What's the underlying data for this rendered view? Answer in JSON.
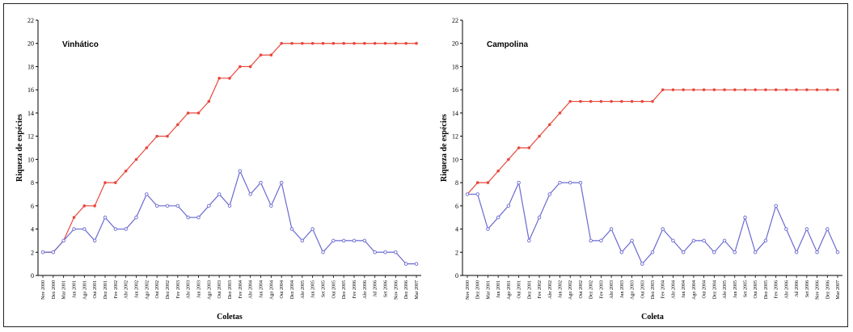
{
  "chart_data": [
    {
      "type": "line",
      "title": "Vinhático",
      "xlabel": "Coletas",
      "ylabel": "Riqueza de espécies",
      "ylim": [
        0,
        22
      ],
      "yticks": [
        0,
        2,
        4,
        6,
        8,
        10,
        12,
        14,
        16,
        18,
        20,
        22
      ],
      "grid": false,
      "x_tick_labels": [
        "Nov 2000",
        "Dez 2000",
        "Mar 2001",
        "Jun 2001",
        "Ago 2001",
        "Out 2001",
        "Dez 2001",
        "Fev 2002",
        "Abr 2002",
        "Jun 2002",
        "Ago 2002",
        "Out 2002",
        "Dez 2002",
        "Fev 2003",
        "Abr 2003",
        "Jun 2003",
        "Ago 2003",
        "Out 2003",
        "Dez 2003",
        "Fev 2004",
        "Abr 2004",
        "Jun 2004",
        "Ago 2004",
        "Out 2004",
        "Dez 2004",
        "Abr 2005",
        "Jun 2005",
        "Set 2005",
        "Out 2005",
        "Dez 2005",
        "Fev 2006",
        "Abr 2006",
        "Jul 2006",
        "Set 2006",
        "Nov 2006",
        "Dez 2006",
        "Mar 2007"
      ],
      "series": [
        {
          "name": "",
          "color": "#e8483c",
          "values": [
            2,
            2,
            3,
            5,
            6,
            6,
            8,
            8,
            9,
            10,
            11,
            12,
            12,
            13,
            14,
            14,
            15,
            17,
            17,
            18,
            18,
            19,
            19,
            20,
            20,
            20,
            20,
            20,
            20,
            20,
            20,
            20,
            20,
            20,
            20,
            20,
            20
          ]
        },
        {
          "name": "",
          "color": "#6a6ad0",
          "values": [
            2,
            2,
            3,
            4,
            4,
            3,
            5,
            4,
            4,
            5,
            7,
            6,
            6,
            6,
            5,
            5,
            6,
            7,
            6,
            9,
            7,
            8,
            6,
            8,
            4,
            3,
            4,
            2,
            3,
            3,
            3,
            3,
            2,
            2,
            2,
            1,
            1
          ]
        }
      ]
    },
    {
      "type": "line",
      "title": "Campolina",
      "xlabel": "Coleta",
      "ylabel": "Riqueza de espécies",
      "ylim": [
        0,
        22
      ],
      "yticks": [
        0,
        2,
        4,
        6,
        8,
        10,
        12,
        14,
        16,
        18,
        20,
        22
      ],
      "grid": false,
      "x_tick_labels": [
        "Nov 2000",
        "Dez 2000",
        "Mar 2001",
        "Jun 2001",
        "Ago 2001",
        "Out 2001",
        "Dez 2001",
        "Fev 2002",
        "Abr 2002",
        "Jun 2002",
        "Ago 2002",
        "Out 2002",
        "Dez 2002",
        "Fev 2003",
        "Abr 2003",
        "Jun 2003",
        "Ago 2003",
        "Out 2003",
        "Dez 2003",
        "Fev 2004",
        "Abr 2004",
        "Jun 2004",
        "Ago 2004",
        "Out 2004",
        "Dez 2004",
        "Abr 2005",
        "Jun 2005",
        "Set 2005",
        "Out 2005",
        "Dez 2005",
        "Fev 2006",
        "Abr 2006",
        "Jul 2006",
        "Set 2006",
        "Nov 2006",
        "Dez 2006",
        "Mar 2007"
      ],
      "series": [
        {
          "name": "",
          "color": "#e8483c",
          "values": [
            7,
            8,
            8,
            9,
            10,
            11,
            11,
            12,
            13,
            14,
            15,
            15,
            15,
            15,
            15,
            15,
            15,
            15,
            15,
            16,
            16,
            16,
            16,
            16,
            16,
            16,
            16,
            16,
            16,
            16,
            16,
            16,
            16,
            16,
            16,
            16,
            16
          ]
        },
        {
          "name": "",
          "color": "#6a6ad0",
          "values": [
            7,
            7,
            4,
            5,
            6,
            8,
            3,
            5,
            7,
            8,
            8,
            8,
            3,
            3,
            4,
            2,
            3,
            1,
            2,
            4,
            3,
            2,
            3,
            3,
            2,
            3,
            2,
            5,
            2,
            3,
            6,
            4,
            2,
            4,
            2,
            4,
            2
          ]
        }
      ]
    }
  ]
}
